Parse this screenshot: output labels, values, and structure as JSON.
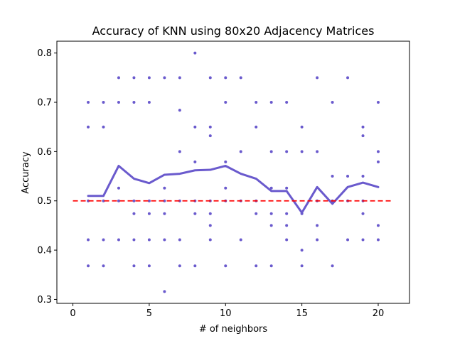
{
  "chart_data": {
    "type": "scatter",
    "title": "Accuracy of KNN using 80x20 Adjacency Matrices",
    "xlabel": "# of neighbors",
    "ylabel": "Accuracy",
    "xlim": [
      -1.05,
      22.05
    ],
    "ylim": [
      0.292,
      0.824
    ],
    "xticks": [
      0,
      5,
      10,
      15,
      20
    ],
    "yticks": [
      0.3,
      0.4,
      0.5,
      0.6,
      0.7,
      0.8
    ],
    "ytick_labels": [
      "0.3",
      "0.4",
      "0.5",
      "0.6",
      "0.7",
      "0.8"
    ],
    "grid": false,
    "colors": {
      "points": "#6a5acd",
      "mean_line": "#6a5acd",
      "baseline": "#ff0000"
    },
    "series": [
      {
        "type": "scatter",
        "points": [
          [
            1,
            0.7
          ],
          [
            1,
            0.65
          ],
          [
            1,
            0.5
          ],
          [
            1,
            0.421
          ],
          [
            1,
            0.368
          ],
          [
            2,
            0.7
          ],
          [
            2,
            0.65
          ],
          [
            2,
            0.5
          ],
          [
            2,
            0.421
          ],
          [
            2,
            0.368
          ],
          [
            3,
            0.75
          ],
          [
            3,
            0.7
          ],
          [
            3,
            0.526
          ],
          [
            3,
            0.5
          ],
          [
            3,
            0.421
          ],
          [
            4,
            0.75
          ],
          [
            4,
            0.7
          ],
          [
            4,
            0.5
          ],
          [
            4,
            0.474
          ],
          [
            4,
            0.421
          ],
          [
            4,
            0.368
          ],
          [
            5,
            0.75
          ],
          [
            5,
            0.7
          ],
          [
            5,
            0.5
          ],
          [
            5,
            0.474
          ],
          [
            5,
            0.421
          ],
          [
            5,
            0.368
          ],
          [
            6,
            0.75
          ],
          [
            6,
            0.526
          ],
          [
            6,
            0.5
          ],
          [
            6,
            0.474
          ],
          [
            6,
            0.421
          ],
          [
            6,
            0.316
          ],
          [
            7,
            0.75
          ],
          [
            7,
            0.684
          ],
          [
            7,
            0.6
          ],
          [
            7,
            0.5
          ],
          [
            7,
            0.421
          ],
          [
            7,
            0.368
          ],
          [
            8,
            0.8
          ],
          [
            8,
            0.65
          ],
          [
            8,
            0.579
          ],
          [
            8,
            0.5
          ],
          [
            8,
            0.474
          ],
          [
            8,
            0.368
          ],
          [
            9,
            0.75
          ],
          [
            9,
            0.65
          ],
          [
            9,
            0.632
          ],
          [
            9,
            0.5
          ],
          [
            9,
            0.474
          ],
          [
            9,
            0.45
          ],
          [
            9,
            0.421
          ],
          [
            10,
            0.75
          ],
          [
            10,
            0.7
          ],
          [
            10,
            0.579
          ],
          [
            10,
            0.526
          ],
          [
            10,
            0.5
          ],
          [
            10,
            0.368
          ],
          [
            11,
            0.75
          ],
          [
            11,
            0.6
          ],
          [
            11,
            0.5
          ],
          [
            11,
            0.421
          ],
          [
            12,
            0.7
          ],
          [
            12,
            0.65
          ],
          [
            12,
            0.5
          ],
          [
            12,
            0.474
          ],
          [
            12,
            0.368
          ],
          [
            13,
            0.7
          ],
          [
            13,
            0.6
          ],
          [
            13,
            0.526
          ],
          [
            13,
            0.474
          ],
          [
            13,
            0.45
          ],
          [
            13,
            0.368
          ],
          [
            14,
            0.7
          ],
          [
            14,
            0.6
          ],
          [
            14,
            0.526
          ],
          [
            14,
            0.474
          ],
          [
            14,
            0.45
          ],
          [
            14,
            0.421
          ],
          [
            15,
            0.65
          ],
          [
            15,
            0.6
          ],
          [
            15,
            0.474
          ],
          [
            15,
            0.4
          ],
          [
            15,
            0.368
          ],
          [
            16,
            0.75
          ],
          [
            16,
            0.6
          ],
          [
            16,
            0.5
          ],
          [
            16,
            0.45
          ],
          [
            16,
            0.421
          ],
          [
            17,
            0.7
          ],
          [
            17,
            0.55
          ],
          [
            17,
            0.5
          ],
          [
            17,
            0.368
          ],
          [
            18,
            0.75
          ],
          [
            18,
            0.55
          ],
          [
            18,
            0.5
          ],
          [
            18,
            0.421
          ],
          [
            19,
            0.65
          ],
          [
            19,
            0.632
          ],
          [
            19,
            0.55
          ],
          [
            19,
            0.5
          ],
          [
            19,
            0.474
          ],
          [
            19,
            0.421
          ],
          [
            20,
            0.7
          ],
          [
            20,
            0.6
          ],
          [
            20,
            0.579
          ],
          [
            20,
            0.45
          ],
          [
            20,
            0.421
          ]
        ]
      },
      {
        "type": "line",
        "x": [
          1,
          2,
          3,
          4,
          5,
          6,
          7,
          8,
          9,
          10,
          11,
          12,
          13,
          14,
          15,
          16,
          17,
          18,
          19,
          20
        ],
        "values": [
          0.51,
          0.51,
          0.571,
          0.545,
          0.536,
          0.553,
          0.555,
          0.562,
          0.563,
          0.571,
          0.555,
          0.545,
          0.52,
          0.52,
          0.476,
          0.528,
          0.494,
          0.528,
          0.537,
          0.528
        ]
      },
      {
        "type": "hline",
        "y": 0.5,
        "x_range": [
          0,
          21
        ],
        "style": "dashed"
      }
    ]
  }
}
